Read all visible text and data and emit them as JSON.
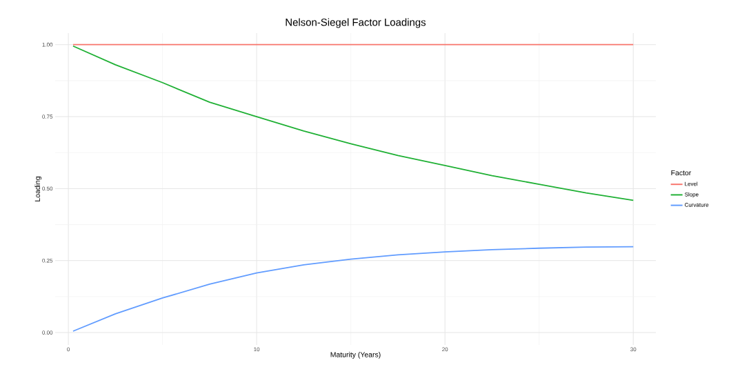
{
  "chart_data": {
    "type": "line",
    "title": "Nelson-Siegel Factor Loadings",
    "xlabel": "Maturity (Years)",
    "ylabel": "Loading",
    "legend_title": "Factor",
    "x": [
      0.25,
      2.5,
      5,
      7.5,
      10,
      12.5,
      15,
      17.5,
      20,
      22.5,
      25,
      27.5,
      30
    ],
    "series": [
      {
        "name": "Level",
        "color": "#f8766d",
        "values": [
          1,
          1,
          1,
          1,
          1,
          1,
          1,
          1,
          1,
          1,
          1,
          1,
          1
        ]
      },
      {
        "name": "Slope",
        "color": "#1fb034",
        "values": [
          0.995,
          0.93,
          0.868,
          0.8,
          0.75,
          0.7,
          0.656,
          0.615,
          0.58,
          0.545,
          0.515,
          0.485,
          0.459
        ]
      },
      {
        "name": "Curvature",
        "color": "#619cff",
        "values": [
          0.005,
          0.065,
          0.12,
          0.168,
          0.207,
          0.235,
          0.255,
          0.27,
          0.28,
          0.288,
          0.293,
          0.297,
          0.298
        ]
      }
    ],
    "xlim": [
      -0.7,
      31.2
    ],
    "ylim": [
      -0.043,
      1.04
    ],
    "xticks": [
      0,
      10,
      20,
      30
    ],
    "yticks": [
      {
        "value": 0,
        "label": "0.00"
      },
      {
        "value": 0.25,
        "label": "0.25"
      },
      {
        "value": 0.5,
        "label": "0.50"
      },
      {
        "value": 0.75,
        "label": "0.75"
      },
      {
        "value": 1,
        "label": "1.00"
      }
    ],
    "grid": true,
    "legend": "right",
    "marker": "none",
    "line_style": "solid"
  }
}
